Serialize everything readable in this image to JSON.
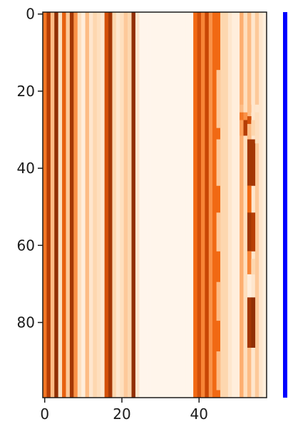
{
  "chart_data": {
    "type": "heatmap",
    "title": "",
    "xlabel": "",
    "ylabel": "",
    "colormap": "Oranges",
    "colorbar_color": "#0000ff",
    "n_rows": 100,
    "n_cols": 58,
    "x_ticks": [
      0,
      20,
      40
    ],
    "y_ticks": [
      0,
      20,
      40,
      60,
      80
    ],
    "x_tick_labels": [
      "0",
      "20",
      "40"
    ],
    "y_tick_labels": [
      "0",
      "20",
      "40",
      "60",
      "80"
    ],
    "column_values": [
      0.55,
      0.85,
      0.3,
      0.95,
      0.15,
      0.65,
      0.25,
      0.9,
      0.45,
      0.15,
      0.05,
      0.3,
      0.1,
      0.2,
      0.15,
      0.1,
      0.75,
      0.9,
      0.2,
      0.1,
      0.15,
      0.25,
      0.2,
      0.95,
      0.1,
      0.0,
      0.0,
      0.0,
      0.0,
      0.0,
      0.0,
      0.0,
      0.0,
      0.0,
      0.0,
      0.0,
      0.0,
      0.0,
      0.0,
      0.6,
      0.75,
      0.5,
      0.8,
      0.45,
      0.7,
      0.6,
      0.2,
      0.2,
      0.1,
      0.05,
      0.05,
      0.35,
      0.15,
      0.3,
      0.1,
      0.25,
      0.1,
      0.05
    ],
    "overrides": [
      {
        "col": 44,
        "rows": [
          0,
          100
        ],
        "value": 0.6
      },
      {
        "col": 45,
        "rows": [
          15,
          30
        ],
        "value": 0.25
      },
      {
        "col": 45,
        "rows": [
          33,
          45
        ],
        "value": 0.25
      },
      {
        "col": 45,
        "rows": [
          52,
          62
        ],
        "value": 0.25
      },
      {
        "col": 45,
        "rows": [
          70,
          80
        ],
        "value": 0.3
      },
      {
        "col": 45,
        "rows": [
          88,
          98
        ],
        "value": 0.3
      },
      {
        "col": 51,
        "rows": [
          24,
          26
        ],
        "value": 0.3
      },
      {
        "col": 51,
        "rows": [
          26,
          28
        ],
        "value": 0.55
      },
      {
        "col": 51,
        "rows": [
          28,
          32
        ],
        "value": 0.4
      },
      {
        "col": 52,
        "rows": [
          24,
          26
        ],
        "value": 0.15
      },
      {
        "col": 52,
        "rows": [
          26,
          28
        ],
        "value": 0.45
      },
      {
        "col": 52,
        "rows": [
          28,
          32
        ],
        "value": 0.85
      },
      {
        "col": 53,
        "rows": [
          24,
          26
        ],
        "value": 0.3
      },
      {
        "col": 53,
        "rows": [
          27,
          29
        ],
        "value": 0.75
      },
      {
        "col": 53,
        "rows": [
          29,
          33
        ],
        "value": 0.3
      },
      {
        "col": 53,
        "rows": [
          33,
          45
        ],
        "value": 0.9
      },
      {
        "col": 53,
        "rows": [
          45,
          52
        ],
        "value": 0.6
      },
      {
        "col": 53,
        "rows": [
          52,
          62
        ],
        "value": 0.9
      },
      {
        "col": 53,
        "rows": [
          62,
          68
        ],
        "value": 0.5
      },
      {
        "col": 53,
        "rows": [
          68,
          74
        ],
        "value": 0.05
      },
      {
        "col": 53,
        "rows": [
          74,
          87
        ],
        "value": 0.9
      },
      {
        "col": 54,
        "rows": [
          28,
          32
        ],
        "value": 0.2
      },
      {
        "col": 54,
        "rows": [
          33,
          45
        ],
        "value": 0.9
      },
      {
        "col": 54,
        "rows": [
          52,
          62
        ],
        "value": 0.85
      },
      {
        "col": 54,
        "rows": [
          64,
          68
        ],
        "value": 0.2
      },
      {
        "col": 54,
        "rows": [
          74,
          87
        ],
        "value": 0.95
      },
      {
        "col": 55,
        "rows": [
          24,
          26
        ],
        "value": 0.1
      },
      {
        "col": 55,
        "rows": [
          26,
          34
        ],
        "value": 0.15
      }
    ]
  }
}
